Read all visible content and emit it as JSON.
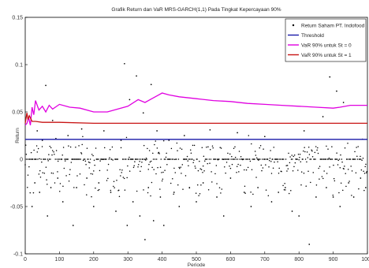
{
  "chart_data": {
    "type": "line",
    "title": "Grafik Return dan VaR MRS-GARCH(1,1) Pada Tingkat Kepercayaan 90%",
    "xlabel": "Periode",
    "ylabel": "Return",
    "xlim": [
      0,
      1000
    ],
    "ylim": [
      -0.1,
      0.15
    ],
    "x_ticks": [
      0,
      100,
      200,
      300,
      400,
      500,
      600,
      700,
      800,
      900,
      1000
    ],
    "x_tick_labels": [
      "0",
      "100",
      "200",
      "300",
      "400",
      "500",
      "600",
      "700",
      "800",
      "900",
      "1000"
    ],
    "y_ticks": [
      -0.1,
      -0.05,
      0,
      0.05,
      0.1,
      0.15
    ],
    "y_tick_labels": [
      "-0.1",
      "-0.05",
      "0",
      "0.05",
      "0.1",
      "0.15"
    ],
    "legend_position": "top-right",
    "legend": [
      {
        "label": "Return Saham PT. Indofood",
        "kind": "marker",
        "color": "#000000"
      },
      {
        "label": "Threshold",
        "kind": "line",
        "color": "#1a1aa8"
      },
      {
        "label": "VaR 90% untuk St = 0",
        "kind": "line",
        "color": "#e000e0"
      },
      {
        "label": "VaR 90% untuk St = 1",
        "kind": "line",
        "color": "#c81414"
      }
    ],
    "series": [
      {
        "name": "Threshold",
        "color": "#1a1aa8",
        "x": [
          0,
          1000
        ],
        "y": [
          0.021,
          0.021
        ]
      },
      {
        "name": "VaR 90% untuk St = 0",
        "color": "#e000e0",
        "x": [
          0,
          5,
          10,
          15,
          20,
          25,
          30,
          40,
          50,
          60,
          70,
          80,
          100,
          130,
          160,
          200,
          240,
          270,
          300,
          330,
          350,
          370,
          390,
          400,
          420,
          450,
          500,
          550,
          600,
          650,
          700,
          750,
          800,
          850,
          900,
          920,
          950,
          1000
        ],
        "y": [
          0.036,
          0.038,
          0.044,
          0.036,
          0.055,
          0.047,
          0.062,
          0.052,
          0.056,
          0.05,
          0.057,
          0.053,
          0.058,
          0.055,
          0.054,
          0.05,
          0.05,
          0.053,
          0.056,
          0.063,
          0.06,
          0.064,
          0.068,
          0.07,
          0.068,
          0.066,
          0.064,
          0.062,
          0.061,
          0.059,
          0.058,
          0.057,
          0.056,
          0.055,
          0.054,
          0.055,
          0.057,
          0.057
        ]
      },
      {
        "name": "VaR 90% untuk St = 1",
        "color": "#c81414",
        "x": [
          0,
          5,
          8,
          12,
          20,
          30,
          50,
          100,
          200,
          300,
          400,
          500,
          600,
          700,
          800,
          900,
          1000
        ],
        "y": [
          0.038,
          0.049,
          0.042,
          0.046,
          0.04,
          0.04,
          0.039,
          0.039,
          0.038,
          0.038,
          0.038,
          0.038,
          0.038,
          0.038,
          0.038,
          0.038,
          0.038
        ]
      }
    ],
    "scatter": {
      "name": "Return Saham PT. Indofood",
      "color": "#000000",
      "note": "Representative return observations; dense band near 0 from period 0 to 1000.",
      "x": [
        20,
        28,
        35,
        42,
        50,
        60,
        65,
        75,
        80,
        95,
        110,
        125,
        140,
        150,
        165,
        180,
        200,
        215,
        230,
        250,
        265,
        280,
        290,
        298,
        305,
        315,
        325,
        335,
        345,
        350,
        360,
        368,
        375,
        385,
        395,
        405,
        420,
        435,
        450,
        465,
        480,
        500,
        520,
        540,
        560,
        580,
        600,
        620,
        640,
        660,
        680,
        700,
        720,
        740,
        760,
        780,
        800,
        815,
        830,
        850,
        870,
        880,
        890,
        900,
        910,
        920,
        930,
        945,
        960,
        980,
        995
      ],
      "y": [
        -0.05,
        -0.025,
        0.03,
        -0.035,
        0.02,
        0.078,
        -0.06,
        -0.03,
        0.041,
        -0.02,
        -0.045,
        0.025,
        -0.07,
        -0.03,
        0.032,
        -0.02,
        -0.05,
        -0.025,
        0.03,
        -0.035,
        -0.055,
        0.02,
        0.101,
        -0.07,
        0.063,
        -0.045,
        0.088,
        -0.06,
        0.049,
        -0.085,
        -0.03,
        0.079,
        -0.065,
        0.03,
        -0.04,
        -0.07,
        0.02,
        -0.035,
        -0.05,
        0.025,
        -0.03,
        -0.045,
        -0.025,
        0.031,
        -0.04,
        -0.06,
        -0.02,
        0.028,
        -0.035,
        -0.05,
        -0.03,
        0.024,
        -0.045,
        -0.035,
        -0.03,
        -0.055,
        -0.06,
        0.03,
        -0.09,
        -0.04,
        0.045,
        -0.03,
        0.087,
        -0.04,
        0.072,
        -0.05,
        0.06,
        -0.025,
        -0.04,
        -0.02,
        -0.03
      ]
    }
  }
}
